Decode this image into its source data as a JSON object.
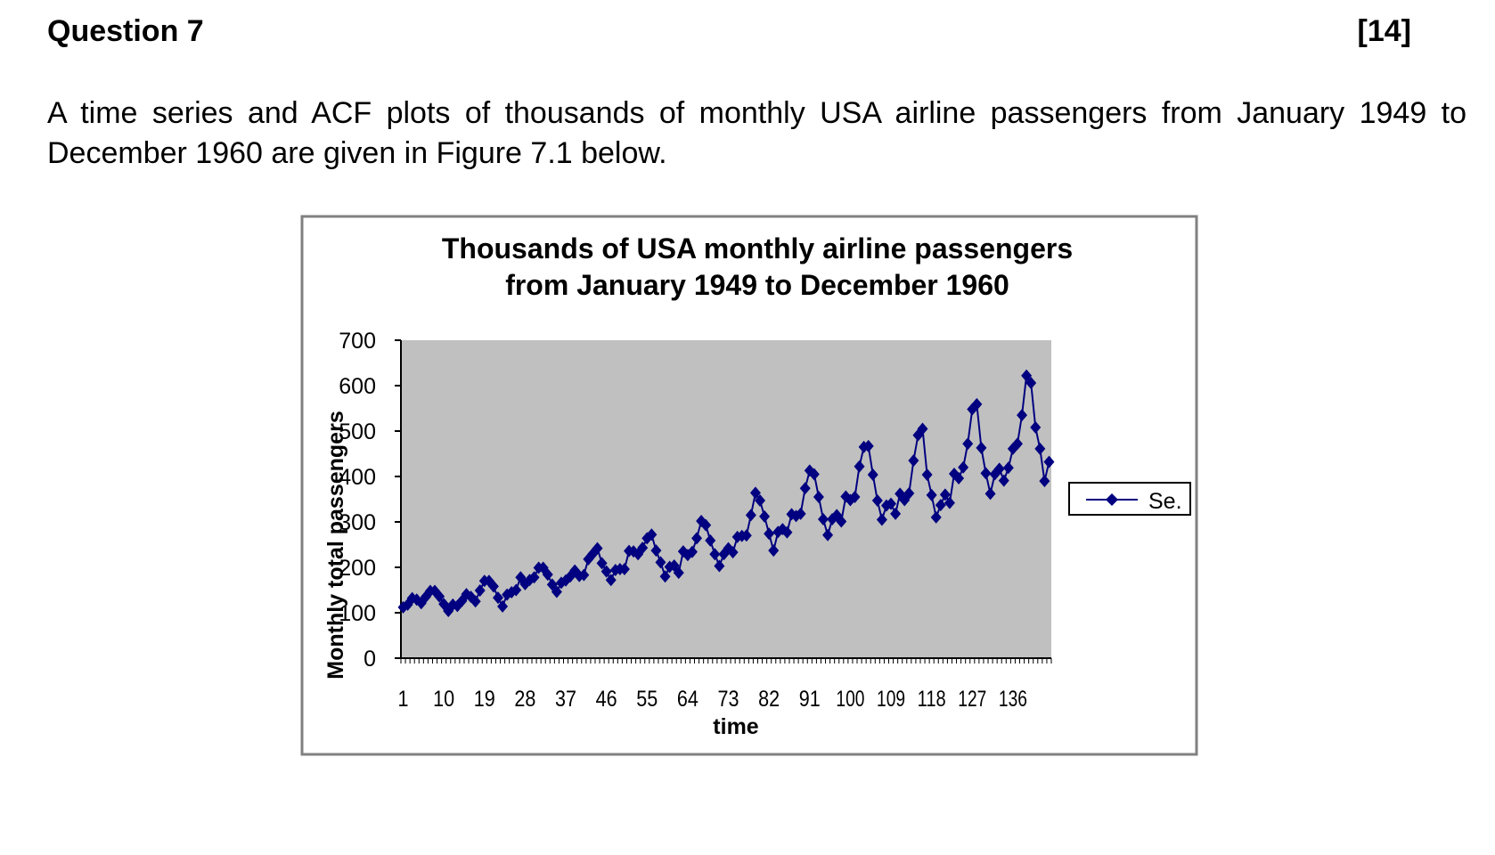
{
  "question": {
    "title": "Question 7",
    "marks": "[14]",
    "text": "A time series and ACF plots of thousands of monthly USA airline passengers from January 1949 to December 1960 are given in Figure 7.1 below."
  },
  "chart_data": {
    "type": "line",
    "title_line1": "Thousands of USA monthly airline passengers",
    "title_line2": "from January 1949 to December 1960",
    "xlabel": "time",
    "ylabel": "Monthly total passengers",
    "ylim": [
      0,
      700
    ],
    "yticks": [
      "0",
      "100",
      "200",
      "300",
      "400",
      "500",
      "600",
      "700"
    ],
    "xtick_labels": [
      "1",
      "10",
      "19",
      "28",
      "37",
      "46",
      "55",
      "64",
      "73",
      "82",
      "91",
      "100",
      "109",
      "118",
      "127",
      "136"
    ],
    "legend": {
      "label": "Se.",
      "position": "right"
    },
    "grid": false,
    "plot_background": "#c0c0c0",
    "series_color": "#000080",
    "series": [
      {
        "name": "Se.",
        "values": [
          112,
          118,
          132,
          129,
          121,
          135,
          148,
          148,
          136,
          119,
          104,
          118,
          115,
          126,
          141,
          135,
          125,
          149,
          170,
          170,
          158,
          133,
          114,
          140,
          145,
          150,
          178,
          163,
          172,
          178,
          199,
          199,
          184,
          162,
          146,
          166,
          171,
          180,
          193,
          181,
          183,
          218,
          230,
          242,
          209,
          191,
          172,
          194,
          196,
          196,
          236,
          235,
          229,
          243,
          264,
          272,
          237,
          211,
          180,
          201,
          204,
          188,
          235,
          227,
          234,
          264,
          302,
          293,
          259,
          229,
          203,
          229,
          242,
          233,
          267,
          269,
          270,
          315,
          364,
          347,
          312,
          274,
          237,
          278,
          284,
          277,
          317,
          313,
          318,
          374,
          413,
          405,
          355,
          306,
          271,
          306,
          315,
          301,
          356,
          348,
          355,
          422,
          465,
          467,
          404,
          347,
          305,
          336,
          340,
          318,
          362,
          348,
          363,
          435,
          491,
          505,
          404,
          359,
          310,
          337,
          360,
          342,
          406,
          396,
          420,
          472,
          548,
          559,
          463,
          407,
          362,
          405,
          417,
          391,
          419,
          461,
          472,
          535,
          622,
          606,
          508,
          461,
          390,
          432
        ]
      }
    ]
  }
}
